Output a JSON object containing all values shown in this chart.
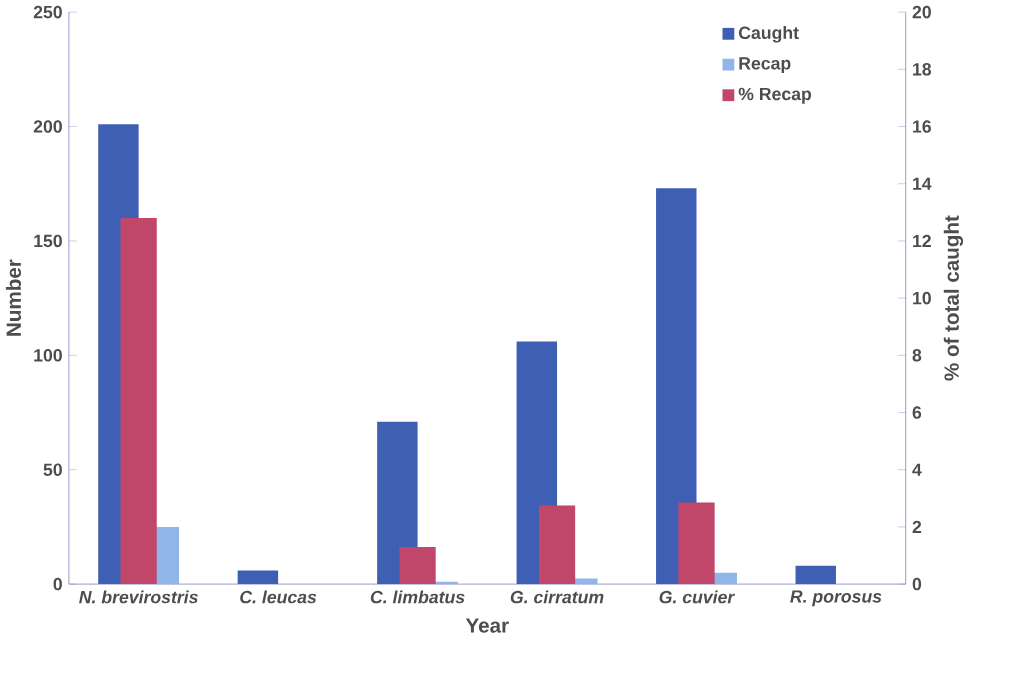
{
  "chart_data": {
    "type": "bar",
    "xlabel": "Year",
    "ylabel": "Number",
    "y2label": "% of total caught",
    "categories": [
      "N. brevirostris",
      "C. leucas",
      "C. limbatus",
      "G. cirratum",
      "G. cuvier",
      "R. porosus"
    ],
    "series": [
      {
        "name": "Caught",
        "color": "#3f5fb5",
        "values": [
          201,
          6,
          71,
          106,
          173,
          8
        ]
      },
      {
        "name": "Recap",
        "color": "#8fb6e6",
        "values": [
          25,
          0,
          1,
          2.5,
          5,
          0
        ]
      },
      {
        "name": "% Recap",
        "color": "#c0476a",
        "axis": "y2",
        "values": [
          12.8,
          0,
          1.3,
          2.75,
          2.85,
          0
        ]
      }
    ],
    "ylim": [
      0,
      250
    ],
    "yticks": [
      0,
      50,
      100,
      150,
      200,
      250
    ],
    "y2lim": [
      0,
      20
    ],
    "y2ticks": [
      0,
      2,
      4,
      6,
      8,
      10,
      12,
      14,
      16,
      18,
      20
    ],
    "legend": "top right",
    "grid": false
  }
}
